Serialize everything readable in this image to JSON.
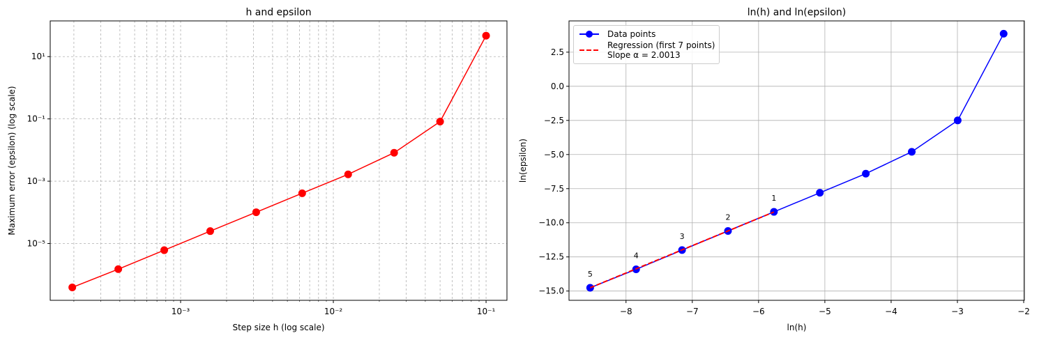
{
  "chart_data": [
    {
      "type": "line",
      "title": "h and epsilon",
      "x_label": "Step size h (log scale)",
      "y_label": "Maximum error (epsilon) (log scale)",
      "x": [
        0.1,
        0.05,
        0.025,
        0.0125,
        0.00625,
        0.003125,
        0.0015625,
        0.00078125,
        0.000390625,
        0.0001953125
      ],
      "series": [
        {
          "color": "#ff0000",
          "marker": true,
          "linestyle": "solid",
          "values": [
            47,
            0.082,
            0.0082,
            0.00166,
            0.00041,
            0.000101,
            2.5e-05,
            6.1e-06,
            1.5e-06,
            3.9e-07
          ]
        }
      ],
      "xscale": "log",
      "yscale": "log",
      "xlim": [
        0.00014,
        0.137
      ],
      "ylim": [
        1.5e-07,
        140
      ],
      "xticks": [
        {
          "value": 0.001,
          "label": "10⁻³"
        },
        {
          "value": 0.01,
          "label": "10⁻²"
        },
        {
          "value": 0.1,
          "label": "10⁻¹"
        }
      ],
      "xminorticks": [
        0.0002,
        0.0003,
        0.0004,
        0.0005,
        0.0006,
        0.0007,
        0.0008,
        0.0009,
        0.002,
        0.003,
        0.004,
        0.005,
        0.006,
        0.007,
        0.008,
        0.009,
        0.02,
        0.03,
        0.04,
        0.05,
        0.06,
        0.07,
        0.08,
        0.09
      ],
      "yticks": [
        {
          "value": 1e-05,
          "label": "10⁻⁵"
        },
        {
          "value": 0.001,
          "label": "10⁻³"
        },
        {
          "value": 0.1,
          "label": "10⁻¹"
        },
        {
          "value": 10,
          "label": "10¹"
        }
      ],
      "grid": true,
      "grid_style": "dashed"
    },
    {
      "type": "line",
      "title": "ln(h) and ln(epsilon)",
      "x_label": "ln(h)",
      "y_label": "ln(epsilon)",
      "x": [
        -2.3026,
        -2.9957,
        -3.6889,
        -4.382,
        -5.0752,
        -5.7683,
        -6.4615,
        -7.1546,
        -7.8478,
        -8.5409
      ],
      "series": [
        {
          "name": "Data points",
          "color": "#0000ff",
          "marker": true,
          "linestyle": "solid",
          "values": [
            3.85,
            -2.5,
            -4.8,
            -6.4,
            -7.8,
            -9.2,
            -10.6,
            -12.0,
            -13.41,
            -14.76
          ]
        },
        {
          "name": "Regression (first 7 points)\nSlope α = 2.0013",
          "color": "#ff0000",
          "marker": false,
          "linestyle": "dashed",
          "x": [
            -8.5409,
            -5.7683
          ],
          "values": [
            -14.76,
            -9.21
          ]
        }
      ],
      "point_labels": [
        null,
        null,
        null,
        null,
        null,
        "1",
        "2",
        "3",
        "4",
        "5"
      ],
      "xscale": "linear",
      "yscale": "linear",
      "xlim": [
        -8.86,
        -1.99
      ],
      "ylim": [
        -15.68,
        4.79
      ],
      "xticks": [
        {
          "value": -8,
          "label": "−8"
        },
        {
          "value": -7,
          "label": "−7"
        },
        {
          "value": -6,
          "label": "−6"
        },
        {
          "value": -5,
          "label": "−5"
        },
        {
          "value": -4,
          "label": "−4"
        },
        {
          "value": -3,
          "label": "−3"
        },
        {
          "value": -2,
          "label": "−2"
        }
      ],
      "yticks": [
        {
          "value": -15,
          "label": "−15.0"
        },
        {
          "value": -12.5,
          "label": "−12.5"
        },
        {
          "value": -10,
          "label": "−10.0"
        },
        {
          "value": -7.5,
          "label": "−7.5"
        },
        {
          "value": -5,
          "label": "−5.0"
        },
        {
          "value": -2.5,
          "label": "−2.5"
        },
        {
          "value": 0,
          "label": "0.0"
        },
        2.5
      ],
      "grid": true,
      "grid_style": "solid",
      "legend": "upper left"
    }
  ]
}
